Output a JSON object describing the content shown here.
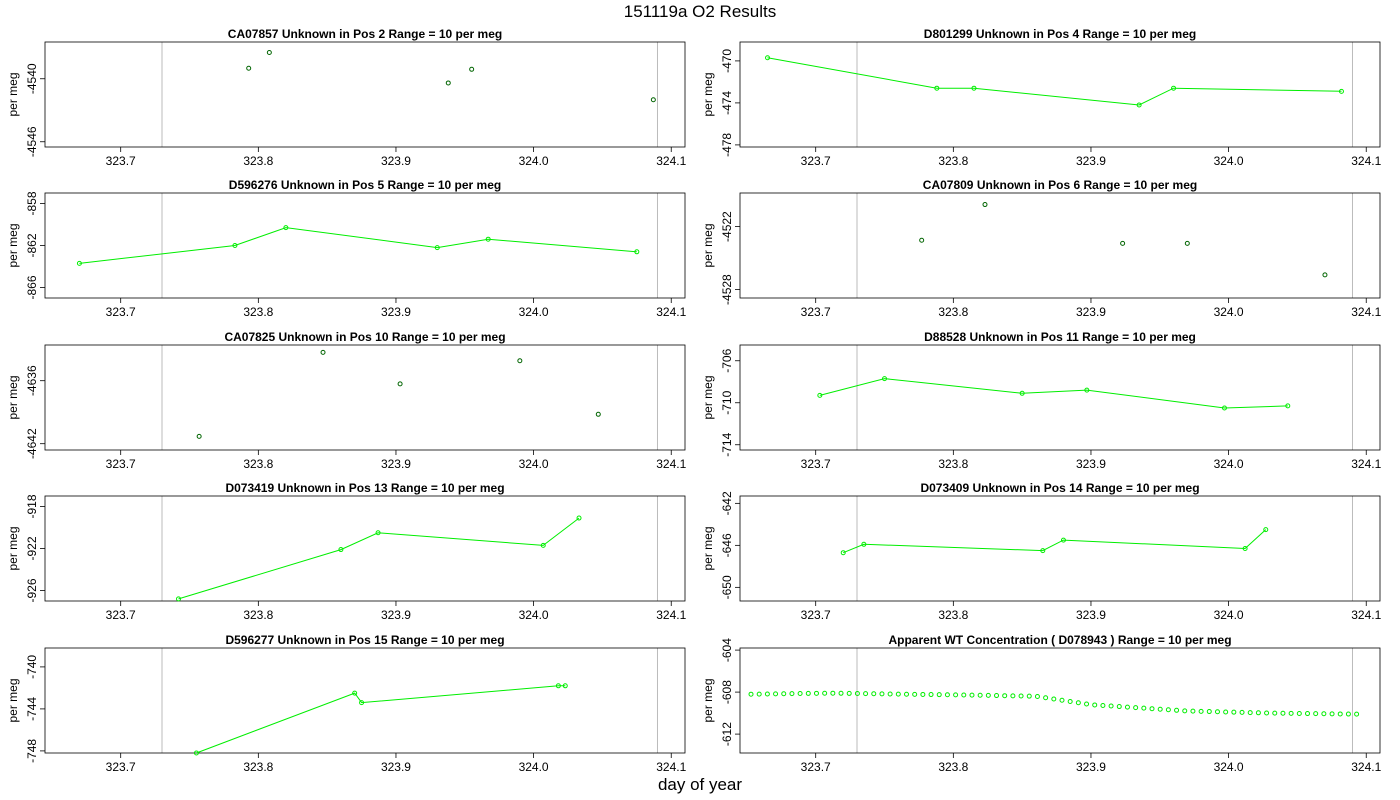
{
  "title": "151119a  O2 Results",
  "xlabel": "day of year",
  "chart_data": [
    {
      "type": "scatter",
      "title": "CA07857    Unknown in Pos 2          Range = 10 per meg",
      "ylabel": "per meg",
      "xlim": [
        323.645,
        324.11
      ],
      "ylim": [
        -4546.5,
        -4536.5
      ],
      "xticks": [
        "323.7",
        "323.8",
        "323.9",
        "324.0",
        "324.1"
      ],
      "yticks": [
        -4546,
        -4540
      ],
      "vlines": [
        323.73,
        324.09
      ],
      "color": "#006400",
      "x": [
        323.793,
        323.808,
        323.938,
        323.955,
        324.087
      ],
      "y": [
        -4539.0,
        -4537.5,
        -4540.4,
        -4539.1,
        -4542.0
      ]
    },
    {
      "type": "line",
      "title": "D801299    Unknown in Pos 4          Range = 10 per meg",
      "ylabel": "per meg",
      "xlim": [
        323.645,
        324.11
      ],
      "ylim": [
        -478.2,
        -468.2
      ],
      "xticks": [
        "323.7",
        "323.8",
        "323.9",
        "324.0",
        "324.1"
      ],
      "yticks": [
        -478,
        -474,
        -470
      ],
      "vlines": [
        323.73,
        324.09
      ],
      "color": "#00ee00",
      "x": [
        323.665,
        323.788,
        323.815,
        323.935,
        323.96,
        324.082
      ],
      "y": [
        -469.7,
        -472.6,
        -472.6,
        -474.2,
        -472.6,
        -472.9
      ]
    },
    {
      "type": "line",
      "title": "D596276    Unknown in Pos 5          Range = 10 per meg",
      "ylabel": "per meg",
      "xlim": [
        323.645,
        324.11
      ],
      "ylim": [
        -867.0,
        -857.0
      ],
      "xticks": [
        "323.7",
        "323.8",
        "323.9",
        "324.0",
        "324.1"
      ],
      "yticks": [
        -866,
        -862,
        -858
      ],
      "vlines": [
        323.73,
        324.09
      ],
      "color": "#00ee00",
      "x": [
        323.67,
        323.783,
        323.82,
        323.93,
        323.967,
        324.075
      ],
      "y": [
        -863.7,
        -862.0,
        -860.3,
        -862.2,
        -861.4,
        -862.6
      ]
    },
    {
      "type": "scatter",
      "title": "CA07809    Unknown in Pos 6          Range = 10 per meg",
      "ylabel": "per meg",
      "xlim": [
        323.645,
        324.11
      ],
      "ylim": [
        -4528.8,
        -4518.8
      ],
      "xticks": [
        "323.7",
        "323.8",
        "323.9",
        "324.0",
        "324.1"
      ],
      "yticks": [
        -4528,
        -4522
      ],
      "vlines": [
        323.73,
        324.09
      ],
      "color": "#006400",
      "x": [
        323.777,
        323.823,
        323.923,
        323.97,
        324.07
      ],
      "y": [
        -4523.3,
        -4519.9,
        -4523.6,
        -4523.6,
        -4526.6
      ]
    },
    {
      "type": "scatter",
      "title": "CA07825    Unknown in Pos 10          Range = 10 per meg",
      "ylabel": "per meg",
      "xlim": [
        323.645,
        324.11
      ],
      "ylim": [
        -4642.6,
        -4632.6
      ],
      "xticks": [
        "323.7",
        "323.8",
        "323.9",
        "324.0",
        "324.1"
      ],
      "yticks": [
        -4642,
        -4636
      ],
      "vlines": [
        323.73,
        324.09
      ],
      "color": "#006400",
      "x": [
        323.757,
        323.847,
        323.903,
        323.99,
        324.047
      ],
      "y": [
        -4641.3,
        -4633.3,
        -4636.3,
        -4634.1,
        -4639.2
      ]
    },
    {
      "type": "line",
      "title": "D88528    Unknown in Pos 11          Range = 10 per meg",
      "ylabel": "per meg",
      "xlim": [
        323.645,
        324.11
      ],
      "ylim": [
        -714.5,
        -704.5
      ],
      "xticks": [
        "323.7",
        "323.8",
        "323.9",
        "324.0",
        "324.1"
      ],
      "yticks": [
        -714,
        -710,
        -706
      ],
      "vlines": [
        323.73,
        324.09
      ],
      "color": "#00ee00",
      "x": [
        323.703,
        323.75,
        323.85,
        323.897,
        323.997,
        324.043
      ],
      "y": [
        -709.3,
        -707.7,
        -709.1,
        -708.8,
        -710.5,
        -710.3
      ]
    },
    {
      "type": "line",
      "title": "D073419    Unknown in Pos 13          Range = 10 per meg",
      "ylabel": "per meg",
      "xlim": [
        323.645,
        324.11
      ],
      "ylim": [
        -927.0,
        -917.0
      ],
      "xticks": [
        "323.7",
        "323.8",
        "323.9",
        "324.0",
        "324.1"
      ],
      "yticks": [
        -926,
        -922,
        -918
      ],
      "vlines": [
        323.73,
        324.09
      ],
      "color": "#00ee00",
      "x": [
        323.742,
        323.86,
        323.887,
        324.007,
        324.033
      ],
      "y": [
        -926.8,
        -922.1,
        -920.5,
        -921.7,
        -919.1
      ]
    },
    {
      "type": "line",
      "title": "D073409    Unknown in Pos 14          Range = 10 per meg",
      "ylabel": "per meg",
      "xlim": [
        323.645,
        324.11
      ],
      "ylim": [
        -651.3,
        -641.3
      ],
      "xticks": [
        "323.7",
        "323.8",
        "323.9",
        "324.0",
        "324.1"
      ],
      "yticks": [
        -650,
        -646,
        -642
      ],
      "vlines": [
        323.73,
        324.09
      ],
      "color": "#00ee00",
      "x": [
        323.72,
        323.735,
        323.865,
        323.88,
        324.012,
        324.027
      ],
      "y": [
        -646.7,
        -645.9,
        -646.5,
        -645.5,
        -646.3,
        -644.5
      ]
    },
    {
      "type": "line",
      "title": "D596277    Unknown in Pos 15          Range = 10 per meg",
      "ylabel": "per meg",
      "xlim": [
        323.645,
        324.11
      ],
      "ylim": [
        -748.2,
        -738.2
      ],
      "xticks": [
        "323.7",
        "323.8",
        "323.9",
        "324.0",
        "324.1"
      ],
      "yticks": [
        -748,
        -744,
        -740
      ],
      "vlines": [
        323.73,
        324.09
      ],
      "color": "#00ee00",
      "x": [
        323.755,
        323.87,
        323.875,
        324.018,
        324.023
      ],
      "y": [
        -748.2,
        -742.5,
        -743.4,
        -741.8,
        -741.8
      ]
    },
    {
      "type": "scatter",
      "title": "Apparent WT Concentration ( D078943 )          Range = 10 per meg",
      "ylabel": "per meg",
      "xlim": [
        323.645,
        324.11
      ],
      "ylim": [
        -613.8,
        -603.8
      ],
      "xticks": [
        "323.7",
        "323.8",
        "323.9",
        "324.0",
        "324.1"
      ],
      "yticks": [
        -612,
        -608,
        -604
      ],
      "vlines": [
        323.73,
        324.09
      ],
      "color": "#00ee00",
      "marker_only": true,
      "x_start": 323.653,
      "x_end": 324.093,
      "n_points": 75,
      "trend": [
        [
          323.653,
          -608.2
        ],
        [
          323.71,
          -608.1
        ],
        [
          323.82,
          -608.3
        ],
        [
          323.86,
          -608.4
        ],
        [
          323.9,
          -609.2
        ],
        [
          323.97,
          -609.8
        ],
        [
          324.03,
          -610.0
        ],
        [
          324.093,
          -610.1
        ]
      ]
    }
  ]
}
